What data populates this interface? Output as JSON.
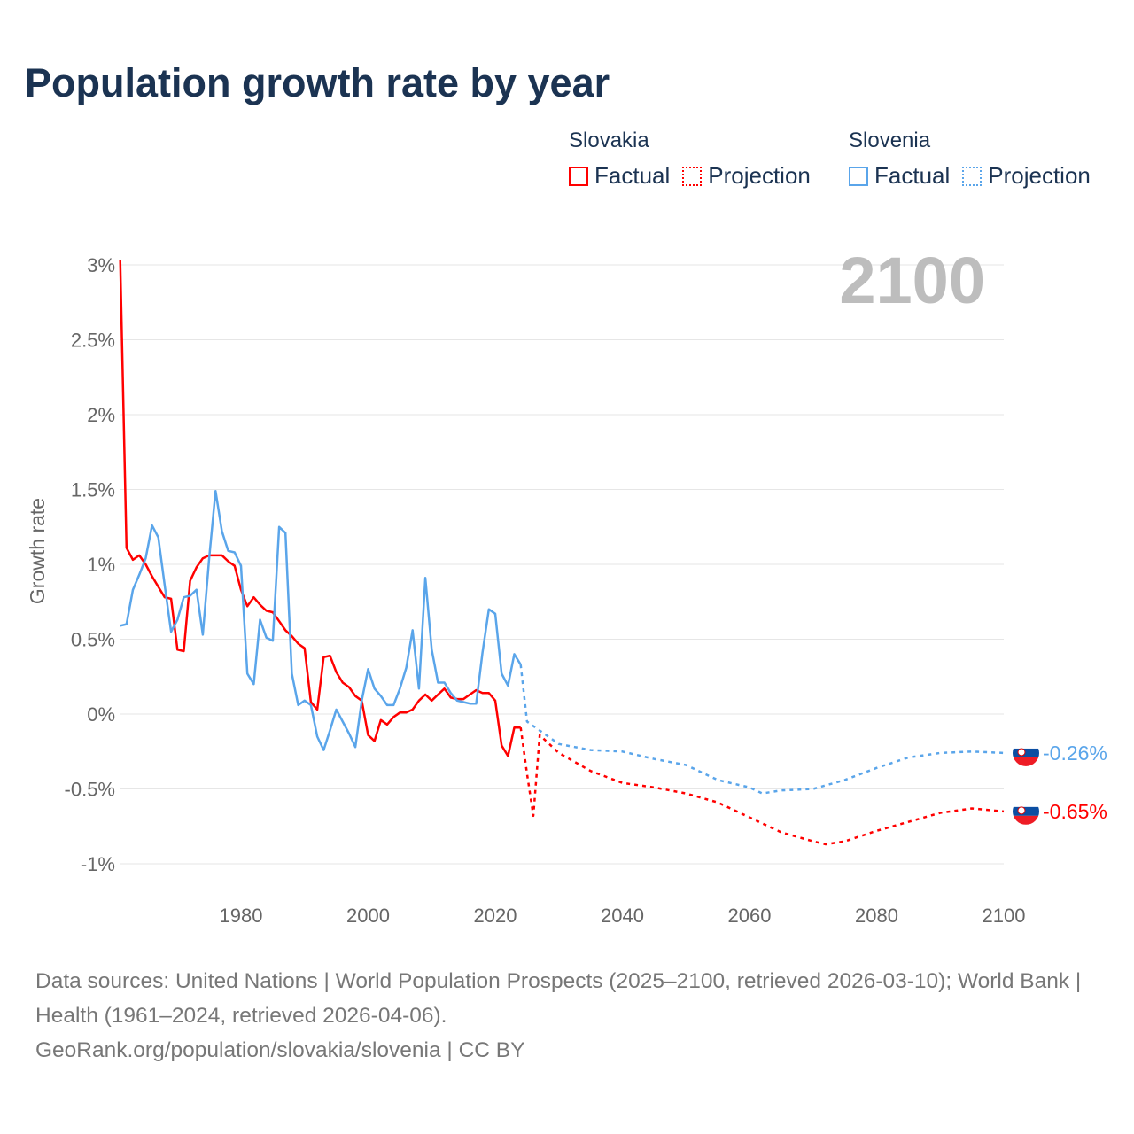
{
  "title": "Population growth rate by year",
  "legend": [
    {
      "name": "Slovakia",
      "factual": "Factual",
      "projection": "Projection",
      "color": "#ff0000"
    },
    {
      "name": "Slovenia",
      "factual": "Factual",
      "projection": "Projection",
      "color": "#5aa5ea"
    }
  ],
  "year_display": "2100",
  "end_labels": {
    "slovakia": "-0.65%",
    "slovenia": "-0.26%"
  },
  "footer": {
    "sources": "Data sources: United Nations | World Population Prospects (2025–2100, retrieved 2026-03-10); World Bank | Health (1961–2024, retrieved 2026-04-06).",
    "site": "GeoRank.org/population/slovakia/slovenia | CC BY"
  },
  "chart_data": {
    "type": "line",
    "title": "Population growth rate by year",
    "xlabel": "",
    "ylabel": "Growth rate",
    "xlim": [
      1961,
      2100
    ],
    "ylim": [
      -1.15,
      3.05
    ],
    "xticks": [
      1980,
      2000,
      2020,
      2040,
      2060,
      2080,
      2100
    ],
    "xtick_labels": [
      "1980",
      "2000",
      "2020",
      "2040",
      "2060",
      "2080",
      "2100"
    ],
    "yticks": [
      3,
      2.5,
      2,
      1.5,
      1,
      0.5,
      0,
      -0.5,
      -1
    ],
    "ytick_labels": [
      "3%",
      "2.5%",
      "2%",
      "1.5%",
      "1%",
      "0.5%",
      "0%",
      "-0.5%",
      "-1%"
    ],
    "grid": true,
    "legend_position": "top-right",
    "series": [
      {
        "name": "Slovakia Factual",
        "color": "#ff0000",
        "dashed": false,
        "x": [
          1961,
          1962,
          1963,
          1964,
          1965,
          1966,
          1967,
          1968,
          1969,
          1970,
          1971,
          1972,
          1973,
          1974,
          1975,
          1976,
          1977,
          1978,
          1979,
          1980,
          1981,
          1982,
          1983,
          1984,
          1985,
          1986,
          1987,
          1988,
          1989,
          1990,
          1991,
          1992,
          1993,
          1994,
          1995,
          1996,
          1997,
          1998,
          1999,
          2000,
          2001,
          2002,
          2003,
          2004,
          2005,
          2006,
          2007,
          2008,
          2009,
          2010,
          2011,
          2012,
          2013,
          2014,
          2015,
          2016,
          2017,
          2018,
          2019,
          2020,
          2021,
          2022,
          2023,
          2024
        ],
        "y": [
          3.03,
          1.11,
          1.03,
          1.06,
          1.0,
          0.92,
          0.85,
          0.78,
          0.77,
          0.43,
          0.42,
          0.89,
          0.98,
          1.04,
          1.06,
          1.06,
          1.06,
          1.02,
          0.99,
          0.83,
          0.72,
          0.78,
          0.73,
          0.69,
          0.68,
          0.62,
          0.56,
          0.52,
          0.47,
          0.44,
          0.08,
          0.03,
          0.38,
          0.39,
          0.28,
          0.21,
          0.18,
          0.12,
          0.09,
          -0.14,
          -0.18,
          -0.04,
          -0.07,
          -0.02,
          0.01,
          0.01,
          0.03,
          0.09,
          0.13,
          0.09,
          0.13,
          0.17,
          0.11,
          0.1,
          0.1,
          0.13,
          0.16,
          0.14,
          0.14,
          0.09,
          -0.21,
          -0.28,
          -0.09,
          -0.09
        ]
      },
      {
        "name": "Slovakia Projection",
        "color": "#ff0000",
        "dashed": true,
        "x": [
          2024,
          2025,
          2026,
          2027,
          2030,
          2035,
          2040,
          2045,
          2050,
          2055,
          2060,
          2065,
          2070,
          2072,
          2075,
          2080,
          2085,
          2090,
          2095,
          2100
        ],
        "y": [
          -0.09,
          -0.4,
          -0.68,
          -0.14,
          -0.26,
          -0.38,
          -0.46,
          -0.49,
          -0.53,
          -0.59,
          -0.69,
          -0.79,
          -0.85,
          -0.87,
          -0.85,
          -0.78,
          -0.72,
          -0.66,
          -0.63,
          -0.65
        ]
      },
      {
        "name": "Slovenia Factual",
        "color": "#5aa5ea",
        "dashed": false,
        "x": [
          1961,
          1962,
          1963,
          1964,
          1965,
          1966,
          1967,
          1968,
          1969,
          1970,
          1971,
          1972,
          1973,
          1974,
          1975,
          1976,
          1977,
          1978,
          1979,
          1980,
          1981,
          1982,
          1983,
          1984,
          1985,
          1986,
          1987,
          1988,
          1989,
          1990,
          1991,
          1992,
          1993,
          1994,
          1995,
          1996,
          1997,
          1998,
          1999,
          2000,
          2001,
          2002,
          2003,
          2004,
          2005,
          2006,
          2007,
          2008,
          2009,
          2010,
          2011,
          2012,
          2013,
          2014,
          2015,
          2016,
          2017,
          2018,
          2019,
          2020,
          2021,
          2022,
          2023,
          2024
        ],
        "y": [
          0.59,
          0.6,
          0.83,
          0.93,
          1.04,
          1.26,
          1.18,
          0.86,
          0.55,
          0.63,
          0.78,
          0.79,
          0.83,
          0.53,
          1.04,
          1.49,
          1.22,
          1.09,
          1.08,
          0.99,
          0.27,
          0.2,
          0.63,
          0.51,
          0.49,
          1.25,
          1.21,
          0.27,
          0.06,
          0.09,
          0.06,
          -0.15,
          -0.24,
          -0.11,
          0.03,
          -0.05,
          -0.13,
          -0.22,
          0.09,
          0.3,
          0.17,
          0.12,
          0.06,
          0.06,
          0.17,
          0.31,
          0.56,
          0.17,
          0.91,
          0.43,
          0.21,
          0.21,
          0.14,
          0.09,
          0.08,
          0.07,
          0.07,
          0.41,
          0.7,
          0.67,
          0.27,
          0.19,
          0.4,
          0.33
        ]
      },
      {
        "name": "Slovenia Projection",
        "color": "#5aa5ea",
        "dashed": true,
        "x": [
          2024,
          2025,
          2027,
          2030,
          2035,
          2040,
          2045,
          2050,
          2055,
          2060,
          2062,
          2065,
          2070,
          2075,
          2080,
          2085,
          2090,
          2095,
          2100
        ],
        "y": [
          0.33,
          -0.05,
          -0.11,
          -0.2,
          -0.24,
          -0.25,
          -0.3,
          -0.34,
          -0.44,
          -0.49,
          -0.53,
          -0.51,
          -0.5,
          -0.44,
          -0.36,
          -0.29,
          -0.26,
          -0.25,
          -0.26
        ]
      }
    ]
  }
}
